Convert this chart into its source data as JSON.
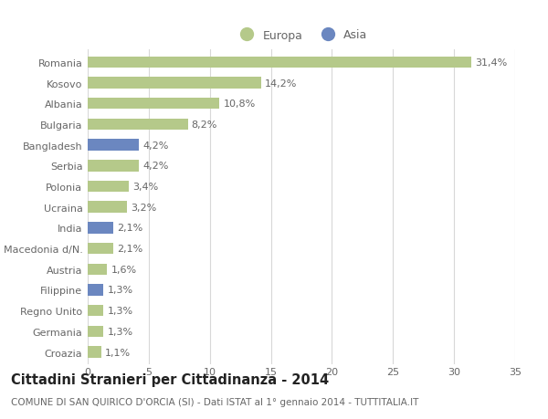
{
  "categories": [
    "Romania",
    "Kosovo",
    "Albania",
    "Bulgaria",
    "Bangladesh",
    "Serbia",
    "Polonia",
    "Ucraina",
    "India",
    "Macedonia d/N.",
    "Austria",
    "Filippine",
    "Regno Unito",
    "Germania",
    "Croazia"
  ],
  "values": [
    31.4,
    14.2,
    10.8,
    8.2,
    4.2,
    4.2,
    3.4,
    3.2,
    2.1,
    2.1,
    1.6,
    1.3,
    1.3,
    1.3,
    1.1
  ],
  "colors": [
    "#b5c98a",
    "#b5c98a",
    "#b5c98a",
    "#b5c98a",
    "#6b87c0",
    "#b5c98a",
    "#b5c98a",
    "#b5c98a",
    "#6b87c0",
    "#b5c98a",
    "#b5c98a",
    "#6b87c0",
    "#b5c98a",
    "#b5c98a",
    "#b5c98a"
  ],
  "labels": [
    "31,4%",
    "14,2%",
    "10,8%",
    "8,2%",
    "4,2%",
    "4,2%",
    "3,4%",
    "3,2%",
    "2,1%",
    "2,1%",
    "1,6%",
    "1,3%",
    "1,3%",
    "1,3%",
    "1,1%"
  ],
  "legend_europa_color": "#b5c98a",
  "legend_asia_color": "#6b87c0",
  "legend_europa_label": "Europa",
  "legend_asia_label": "Asia",
  "title": "Cittadini Stranieri per Cittadinanza - 2014",
  "subtitle": "COMUNE DI SAN QUIRICO D'ORCIA (SI) - Dati ISTAT al 1° gennaio 2014 - TUTTITALIA.IT",
  "xlim": [
    0,
    35
  ],
  "xticks": [
    0,
    5,
    10,
    15,
    20,
    25,
    30,
    35
  ],
  "background_color": "#ffffff",
  "grid_color": "#d8d8d8",
  "bar_height": 0.55,
  "label_fontsize": 8,
  "tick_fontsize": 8,
  "title_fontsize": 10.5,
  "subtitle_fontsize": 7.5
}
